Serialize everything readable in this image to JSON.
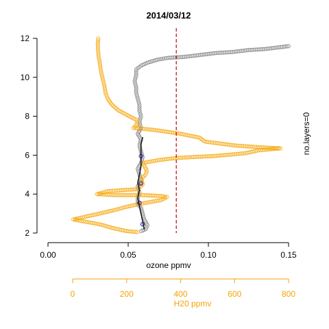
{
  "chart_data": {
    "type": "scatter",
    "title": "2014/03/12",
    "xlabel": "ozone ppmv",
    "ylabel": "",
    "side_label": "no.layers=0",
    "xlim": [
      0,
      0.15
    ],
    "ylim": [
      2,
      12
    ],
    "x_ticks": [
      0.0,
      0.05,
      0.1,
      0.15
    ],
    "x_tick_labels": [
      "0.00",
      "0.05",
      "0.10",
      "0.15"
    ],
    "y_ticks": [
      2,
      4,
      6,
      8,
      10,
      12
    ],
    "y_tick_labels": [
      "2",
      "4",
      "6",
      "8",
      "10",
      "12"
    ],
    "secondary_axis": {
      "label": "H20 ppmv",
      "lim": [
        0,
        800
      ],
      "ticks": [
        0,
        200,
        400,
        600,
        800
      ],
      "tick_labels": [
        "0",
        "200",
        "400",
        "600",
        "800"
      ],
      "color": "#f5a300"
    },
    "reference_line": {
      "x": 0.08,
      "color": "#cc0000",
      "style": "dashed"
    },
    "grid": false,
    "series": [
      {
        "axis": "primary",
        "color": "#7f7f7f",
        "values": [
          [
            0.058,
            2.1
          ],
          [
            0.061,
            2.2
          ],
          [
            0.062,
            2.4
          ],
          [
            0.06,
            2.7
          ],
          [
            0.059,
            3.0
          ],
          [
            0.058,
            3.3
          ],
          [
            0.056,
            3.5
          ],
          [
            0.056,
            3.8
          ],
          [
            0.057,
            4.1
          ],
          [
            0.056,
            4.4
          ],
          [
            0.058,
            4.7
          ],
          [
            0.057,
            5.0
          ],
          [
            0.056,
            5.3
          ],
          [
            0.058,
            5.6
          ],
          [
            0.059,
            5.9
          ],
          [
            0.058,
            6.2
          ],
          [
            0.057,
            6.5
          ],
          [
            0.058,
            6.8
          ],
          [
            0.056,
            7.1
          ],
          [
            0.058,
            7.4
          ],
          [
            0.057,
            7.7
          ],
          [
            0.058,
            8.0
          ],
          [
            0.057,
            8.3
          ],
          [
            0.057,
            8.6
          ],
          [
            0.056,
            8.9
          ],
          [
            0.055,
            9.2
          ],
          [
            0.055,
            9.5
          ],
          [
            0.054,
            9.8
          ],
          [
            0.055,
            10.1
          ],
          [
            0.055,
            10.4
          ],
          [
            0.058,
            10.6
          ],
          [
            0.062,
            10.75
          ],
          [
            0.068,
            10.9
          ],
          [
            0.075,
            11.0
          ],
          [
            0.085,
            11.05
          ],
          [
            0.095,
            11.15
          ],
          [
            0.105,
            11.25
          ],
          [
            0.115,
            11.3
          ],
          [
            0.125,
            11.4
          ],
          [
            0.135,
            11.45
          ],
          [
            0.145,
            11.55
          ],
          [
            0.15,
            11.6
          ]
        ]
      },
      {
        "axis": "secondary",
        "color": "#f5a300",
        "values": [
          [
            95,
            12.0
          ],
          [
            93,
            11.7
          ],
          [
            94,
            11.4
          ],
          [
            96,
            11.1
          ],
          [
            100,
            10.8
          ],
          [
            104,
            10.4
          ],
          [
            110,
            10.0
          ],
          [
            117,
            9.6
          ],
          [
            122,
            9.2
          ],
          [
            130,
            8.9
          ],
          [
            145,
            8.6
          ],
          [
            170,
            8.3
          ],
          [
            210,
            8.0
          ],
          [
            238,
            7.8
          ],
          [
            240,
            7.6
          ],
          [
            225,
            7.4
          ],
          [
            300,
            7.3
          ],
          [
            400,
            7.1
          ],
          [
            470,
            6.9
          ],
          [
            490,
            6.7
          ],
          [
            600,
            6.5
          ],
          [
            700,
            6.4
          ],
          [
            770,
            6.35
          ],
          [
            690,
            6.25
          ],
          [
            640,
            6.1
          ],
          [
            600,
            6.05
          ],
          [
            520,
            5.95
          ],
          [
            440,
            5.9
          ],
          [
            380,
            5.85
          ],
          [
            320,
            5.75
          ],
          [
            260,
            5.6
          ],
          [
            275,
            5.2
          ],
          [
            270,
            5.0
          ],
          [
            255,
            4.8
          ],
          [
            260,
            4.5
          ],
          [
            240,
            4.25
          ],
          [
            180,
            4.2
          ],
          [
            130,
            4.15
          ],
          [
            90,
            4.0
          ],
          [
            150,
            3.95
          ],
          [
            260,
            3.95
          ],
          [
            330,
            3.9
          ],
          [
            350,
            3.85
          ],
          [
            330,
            3.7
          ],
          [
            250,
            3.5
          ],
          [
            200,
            3.35
          ],
          [
            160,
            3.2
          ],
          [
            100,
            3.0
          ],
          [
            50,
            2.85
          ],
          [
            2,
            2.7
          ],
          [
            40,
            2.6
          ],
          [
            100,
            2.45
          ],
          [
            150,
            2.25
          ],
          [
            200,
            2.1
          ],
          [
            240,
            2.05
          ]
        ]
      },
      {
        "axis": "primary",
        "color": "#111111",
        "values": [
          [
            0.06,
            2.2
          ],
          [
            0.059,
            2.6
          ],
          [
            0.058,
            3.0
          ],
          [
            0.057,
            3.4
          ],
          [
            0.056,
            3.8
          ],
          [
            0.057,
            4.2
          ],
          [
            0.056,
            4.6
          ],
          [
            0.057,
            5.0
          ],
          [
            0.058,
            5.4
          ],
          [
            0.058,
            5.8
          ],
          [
            0.058,
            6.2
          ],
          [
            0.058,
            6.6
          ],
          [
            0.059,
            6.9
          ]
        ]
      },
      {
        "axis": "primary",
        "color": "#1a1aa6",
        "values": [
          [
            0.059,
            2.45
          ],
          [
            0.057,
            3.55
          ],
          [
            0.058,
            4.55
          ],
          [
            0.058,
            5.95
          ]
        ]
      }
    ]
  }
}
